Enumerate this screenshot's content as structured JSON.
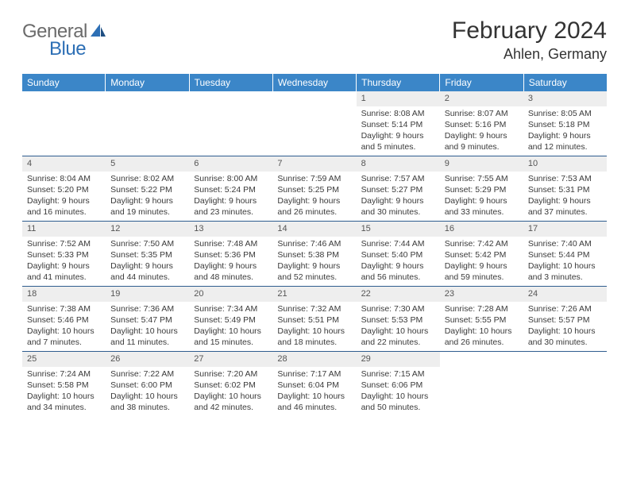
{
  "logo": {
    "textTop": "General",
    "textBottom": "Blue"
  },
  "header": {
    "title": "February 2024",
    "location": "Ahlen, Germany"
  },
  "colors": {
    "header_bg": "#3b86c8",
    "header_text": "#ffffff",
    "daynum_bg": "#eeeeee",
    "rule": "#2f5d8f",
    "logo_gray": "#6b6b6b",
    "logo_blue": "#2d6fb5"
  },
  "dayNames": [
    "Sunday",
    "Monday",
    "Tuesday",
    "Wednesday",
    "Thursday",
    "Friday",
    "Saturday"
  ],
  "weeks": [
    [
      {
        "n": "",
        "empty": true
      },
      {
        "n": "",
        "empty": true
      },
      {
        "n": "",
        "empty": true
      },
      {
        "n": "",
        "empty": true
      },
      {
        "n": "1",
        "sunrise": "Sunrise: 8:08 AM",
        "sunset": "Sunset: 5:14 PM",
        "daylight": "Daylight: 9 hours and 5 minutes."
      },
      {
        "n": "2",
        "sunrise": "Sunrise: 8:07 AM",
        "sunset": "Sunset: 5:16 PM",
        "daylight": "Daylight: 9 hours and 9 minutes."
      },
      {
        "n": "3",
        "sunrise": "Sunrise: 8:05 AM",
        "sunset": "Sunset: 5:18 PM",
        "daylight": "Daylight: 9 hours and 12 minutes."
      }
    ],
    [
      {
        "n": "4",
        "sunrise": "Sunrise: 8:04 AM",
        "sunset": "Sunset: 5:20 PM",
        "daylight": "Daylight: 9 hours and 16 minutes."
      },
      {
        "n": "5",
        "sunrise": "Sunrise: 8:02 AM",
        "sunset": "Sunset: 5:22 PM",
        "daylight": "Daylight: 9 hours and 19 minutes."
      },
      {
        "n": "6",
        "sunrise": "Sunrise: 8:00 AM",
        "sunset": "Sunset: 5:24 PM",
        "daylight": "Daylight: 9 hours and 23 minutes."
      },
      {
        "n": "7",
        "sunrise": "Sunrise: 7:59 AM",
        "sunset": "Sunset: 5:25 PM",
        "daylight": "Daylight: 9 hours and 26 minutes."
      },
      {
        "n": "8",
        "sunrise": "Sunrise: 7:57 AM",
        "sunset": "Sunset: 5:27 PM",
        "daylight": "Daylight: 9 hours and 30 minutes."
      },
      {
        "n": "9",
        "sunrise": "Sunrise: 7:55 AM",
        "sunset": "Sunset: 5:29 PM",
        "daylight": "Daylight: 9 hours and 33 minutes."
      },
      {
        "n": "10",
        "sunrise": "Sunrise: 7:53 AM",
        "sunset": "Sunset: 5:31 PM",
        "daylight": "Daylight: 9 hours and 37 minutes."
      }
    ],
    [
      {
        "n": "11",
        "sunrise": "Sunrise: 7:52 AM",
        "sunset": "Sunset: 5:33 PM",
        "daylight": "Daylight: 9 hours and 41 minutes."
      },
      {
        "n": "12",
        "sunrise": "Sunrise: 7:50 AM",
        "sunset": "Sunset: 5:35 PM",
        "daylight": "Daylight: 9 hours and 44 minutes."
      },
      {
        "n": "13",
        "sunrise": "Sunrise: 7:48 AM",
        "sunset": "Sunset: 5:36 PM",
        "daylight": "Daylight: 9 hours and 48 minutes."
      },
      {
        "n": "14",
        "sunrise": "Sunrise: 7:46 AM",
        "sunset": "Sunset: 5:38 PM",
        "daylight": "Daylight: 9 hours and 52 minutes."
      },
      {
        "n": "15",
        "sunrise": "Sunrise: 7:44 AM",
        "sunset": "Sunset: 5:40 PM",
        "daylight": "Daylight: 9 hours and 56 minutes."
      },
      {
        "n": "16",
        "sunrise": "Sunrise: 7:42 AM",
        "sunset": "Sunset: 5:42 PM",
        "daylight": "Daylight: 9 hours and 59 minutes."
      },
      {
        "n": "17",
        "sunrise": "Sunrise: 7:40 AM",
        "sunset": "Sunset: 5:44 PM",
        "daylight": "Daylight: 10 hours and 3 minutes."
      }
    ],
    [
      {
        "n": "18",
        "sunrise": "Sunrise: 7:38 AM",
        "sunset": "Sunset: 5:46 PM",
        "daylight": "Daylight: 10 hours and 7 minutes."
      },
      {
        "n": "19",
        "sunrise": "Sunrise: 7:36 AM",
        "sunset": "Sunset: 5:47 PM",
        "daylight": "Daylight: 10 hours and 11 minutes."
      },
      {
        "n": "20",
        "sunrise": "Sunrise: 7:34 AM",
        "sunset": "Sunset: 5:49 PM",
        "daylight": "Daylight: 10 hours and 15 minutes."
      },
      {
        "n": "21",
        "sunrise": "Sunrise: 7:32 AM",
        "sunset": "Sunset: 5:51 PM",
        "daylight": "Daylight: 10 hours and 18 minutes."
      },
      {
        "n": "22",
        "sunrise": "Sunrise: 7:30 AM",
        "sunset": "Sunset: 5:53 PM",
        "daylight": "Daylight: 10 hours and 22 minutes."
      },
      {
        "n": "23",
        "sunrise": "Sunrise: 7:28 AM",
        "sunset": "Sunset: 5:55 PM",
        "daylight": "Daylight: 10 hours and 26 minutes."
      },
      {
        "n": "24",
        "sunrise": "Sunrise: 7:26 AM",
        "sunset": "Sunset: 5:57 PM",
        "daylight": "Daylight: 10 hours and 30 minutes."
      }
    ],
    [
      {
        "n": "25",
        "sunrise": "Sunrise: 7:24 AM",
        "sunset": "Sunset: 5:58 PM",
        "daylight": "Daylight: 10 hours and 34 minutes."
      },
      {
        "n": "26",
        "sunrise": "Sunrise: 7:22 AM",
        "sunset": "Sunset: 6:00 PM",
        "daylight": "Daylight: 10 hours and 38 minutes."
      },
      {
        "n": "27",
        "sunrise": "Sunrise: 7:20 AM",
        "sunset": "Sunset: 6:02 PM",
        "daylight": "Daylight: 10 hours and 42 minutes."
      },
      {
        "n": "28",
        "sunrise": "Sunrise: 7:17 AM",
        "sunset": "Sunset: 6:04 PM",
        "daylight": "Daylight: 10 hours and 46 minutes."
      },
      {
        "n": "29",
        "sunrise": "Sunrise: 7:15 AM",
        "sunset": "Sunset: 6:06 PM",
        "daylight": "Daylight: 10 hours and 50 minutes."
      },
      {
        "n": "",
        "empty": true
      },
      {
        "n": "",
        "empty": true
      }
    ]
  ]
}
